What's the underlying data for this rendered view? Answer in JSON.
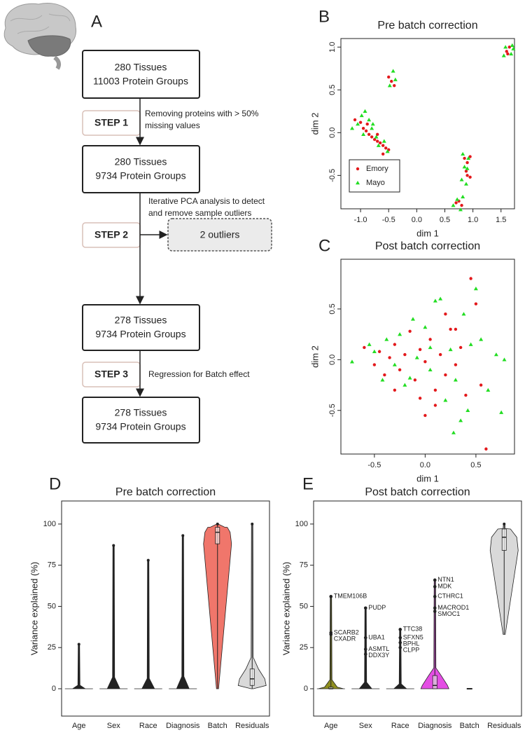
{
  "flowchart": {
    "panel_label": "A",
    "boxes": [
      [
        "280 Tissues",
        "11003  Protein Groups"
      ],
      [
        "280 Tissues",
        "9734 Protein Groups"
      ],
      [
        "278 Tissues",
        "9734  Protein Groups"
      ],
      [
        "278 Tissues",
        "9734  Protein Groups"
      ]
    ],
    "steps": [
      {
        "label": "STEP 1",
        "description": [
          "Removing proteins with > 50%",
          "missing values"
        ]
      },
      {
        "label": "STEP 2",
        "description": [
          "Iterative PCA analysis to detect",
          "and remove sample outliers"
        ]
      },
      {
        "label": "STEP 3",
        "description": [
          "Regression for Batch effect"
        ]
      }
    ],
    "outliers": "2 outliers"
  },
  "chart_data": [
    {
      "type": "scatter",
      "panel_label": "B",
      "title": "Pre batch correction",
      "xlabel": "dim 1",
      "ylabel": "dim 2",
      "xlim": [
        -1.35,
        1.74
      ],
      "ylim": [
        -0.89,
        1.1
      ],
      "xticks": [
        {
          "value": -1,
          "label": "-1.0"
        },
        -0.5,
        {
          "value": 0,
          "label": "0.0"
        },
        0.5,
        {
          "value": 1,
          "label": "1.0"
        },
        1.5
      ],
      "yticks": [
        -0.5,
        {
          "value": 0,
          "label": "0.0"
        },
        0.5,
        {
          "value": 1,
          "label": "1.0"
        }
      ],
      "legend": "lower left",
      "series": [
        {
          "name": "Emory",
          "color": "#e3191c",
          "marker": "circle",
          "x": [
            -1.1,
            -1.0,
            -0.95,
            -0.9,
            -0.85,
            -0.8,
            -0.75,
            -0.7,
            -0.65,
            -0.6,
            -0.55,
            -0.5,
            -0.6,
            -0.7,
            -0.88,
            -0.45,
            -0.4,
            -0.5,
            0.85,
            0.9,
            0.95,
            0.88,
            0.95,
            0.9,
            0.75,
            0.8,
            0.7,
            1.6,
            1.65,
            1.62
          ],
          "y": [
            0.15,
            0.12,
            0.05,
            0.02,
            -0.02,
            -0.05,
            -0.08,
            -0.1,
            -0.12,
            -0.15,
            -0.18,
            -0.2,
            -0.25,
            -0.02,
            0.1,
            0.6,
            0.55,
            0.65,
            -0.3,
            -0.35,
            -0.28,
            -0.45,
            -0.52,
            -0.5,
            -0.8,
            -0.85,
            -0.82,
            0.95,
            1.0,
            0.92
          ]
        },
        {
          "name": "Mayo",
          "color": "#22dd22",
          "marker": "triangle",
          "x": [
            -1.05,
            -0.98,
            -0.92,
            -0.85,
            -0.8,
            -0.72,
            -0.68,
            -0.58,
            -0.52,
            -0.95,
            -1.15,
            -0.78,
            -0.42,
            -0.38,
            -0.48,
            0.82,
            0.92,
            0.85,
            0.9,
            0.88,
            0.8,
            0.72,
            0.78,
            0.82,
            0.65,
            1.58,
            1.7,
            1.55,
            1.68,
            1.72
          ],
          "y": [
            0.1,
            0.2,
            0.25,
            0.15,
            0.05,
            -0.05,
            -0.15,
            -0.1,
            -0.22,
            -0.02,
            0.05,
            0.1,
            0.72,
            0.62,
            0.55,
            -0.25,
            -0.3,
            -0.4,
            -0.42,
            -0.6,
            -0.55,
            -0.78,
            -0.9,
            -0.75,
            -0.85,
            1.0,
            1.02,
            0.9,
            0.92,
            0.98
          ]
        }
      ]
    },
    {
      "type": "scatter",
      "panel_label": "C",
      "title": "Post batch correction",
      "xlabel": "dim 1",
      "ylabel": "dim 2",
      "xlim": [
        -0.83,
        0.88
      ],
      "ylim": [
        -0.93,
        0.99
      ],
      "xticks": [
        -0.5,
        {
          "value": 0,
          "label": "0.0"
        },
        0.5
      ],
      "yticks": [
        -0.5,
        {
          "value": 0,
          "label": "0.0"
        },
        0.5
      ],
      "series": [
        {
          "color": "#e3191c",
          "marker": "circle",
          "x": [
            -0.6,
            -0.5,
            -0.45,
            -0.4,
            -0.35,
            -0.3,
            -0.25,
            -0.2,
            -0.15,
            -0.1,
            -0.05,
            0.0,
            0.05,
            0.1,
            0.15,
            0.2,
            0.25,
            0.3,
            0.35,
            0.4,
            0.45,
            0.5,
            0.55,
            0.6,
            0.0,
            -0.05,
            0.2,
            0.1,
            -0.3,
            0.3
          ],
          "y": [
            0.12,
            -0.05,
            0.08,
            -0.15,
            0.02,
            0.15,
            -0.1,
            0.05,
            0.28,
            -0.2,
            0.1,
            -0.02,
            0.2,
            -0.3,
            0.05,
            -0.15,
            0.3,
            -0.05,
            0.12,
            -0.35,
            0.8,
            0.55,
            -0.25,
            -0.88,
            -0.55,
            -0.38,
            0.45,
            -0.45,
            -0.3,
            0.3
          ]
        },
        {
          "color": "#22dd22",
          "marker": "triangle",
          "x": [
            -0.72,
            -0.55,
            -0.5,
            -0.42,
            -0.38,
            -0.3,
            -0.25,
            -0.2,
            -0.12,
            -0.08,
            0.0,
            0.05,
            0.1,
            0.15,
            0.2,
            0.25,
            0.3,
            0.38,
            0.42,
            0.5,
            0.55,
            0.62,
            0.7,
            0.75,
            0.78,
            0.28,
            -0.15,
            0.05,
            0.35,
            0.45
          ],
          "y": [
            -0.02,
            0.15,
            0.08,
            -0.2,
            0.2,
            -0.05,
            0.25,
            -0.25,
            0.4,
            0.02,
            0.32,
            -0.1,
            0.58,
            0.6,
            -0.4,
            0.1,
            -0.2,
            0.45,
            -0.5,
            0.7,
            0.2,
            -0.3,
            0.05,
            -0.52,
            0.0,
            -0.72,
            -0.18,
            0.12,
            -0.6,
            0.15
          ]
        }
      ]
    },
    {
      "type": "violin",
      "panel_label": "D",
      "title": "Pre batch correction",
      "ylabel": "Variance explained (%)",
      "categories": [
        "Age",
        "Sex",
        "Race",
        "Diagnosis",
        "Batch",
        "Residuals"
      ],
      "ylim": [
        -16.6,
        114
      ],
      "yticks": [
        0,
        25,
        50,
        75,
        100
      ],
      "colors": [
        "#222222",
        "#222222",
        "#222222",
        "#222222",
        "#f0766b",
        "#d9d9d9"
      ],
      "stats": {
        "min": [
          0,
          0,
          0,
          0,
          0,
          0
        ],
        "q1": [
          0,
          0,
          0,
          0,
          88,
          2
        ],
        "median": [
          0,
          0,
          0,
          0,
          95,
          6
        ],
        "q3": [
          0,
          0,
          0,
          0,
          98,
          12
        ],
        "max": [
          27,
          87,
          78,
          93,
          100,
          100
        ]
      }
    },
    {
      "type": "violin",
      "panel_label": "E",
      "title": "Post batch correction",
      "ylabel": "Variance explained (%)",
      "categories": [
        "Age",
        "Sex",
        "Race",
        "Diagnosis",
        "Batch",
        "Residuals"
      ],
      "ylim": [
        -16.6,
        114
      ],
      "yticks": [
        0,
        25,
        50,
        75,
        100
      ],
      "colors": [
        "#8f8f1f",
        "#222222",
        "#222222",
        "#e44ee4",
        "#222222",
        "#d9d9d9"
      ],
      "stats": {
        "min": [
          0,
          0,
          0,
          0,
          0,
          33
        ],
        "q1": [
          0,
          0,
          0,
          0,
          0,
          84
        ],
        "median": [
          0,
          0,
          0,
          2,
          0,
          92
        ],
        "q3": [
          1,
          0,
          0,
          8,
          0,
          97
        ],
        "max": [
          56,
          49,
          36,
          66,
          0,
          100
        ]
      },
      "annotations": [
        {
          "category": "Age",
          "label": "TMEM106B",
          "value": 56
        },
        {
          "category": "Age",
          "label": "SCARB2",
          "value": 34
        },
        {
          "category": "Age",
          "label": "CXADR",
          "value": 33
        },
        {
          "category": "Sex",
          "label": "PUDP",
          "value": 49
        },
        {
          "category": "Sex",
          "label": "UBA1",
          "value": 31
        },
        {
          "category": "Sex",
          "label": "ASMTL",
          "value": 24
        },
        {
          "category": "Sex",
          "label": "DDX3Y",
          "value": 21
        },
        {
          "category": "Race",
          "label": "TTC38",
          "value": 36
        },
        {
          "category": "Race",
          "label": "SFXN5",
          "value": 31
        },
        {
          "category": "Race",
          "label": "BPHL",
          "value": 28
        },
        {
          "category": "Race",
          "label": "CLPP",
          "value": 25
        },
        {
          "category": "Diagnosis",
          "label": "NTN1",
          "value": 66
        },
        {
          "category": "Diagnosis",
          "label": "MDK",
          "value": 62
        },
        {
          "category": "Diagnosis",
          "label": "CTHRC1",
          "value": 56
        },
        {
          "category": "Diagnosis",
          "label": "MACROD1",
          "value": 49
        },
        {
          "category": "Diagnosis",
          "label": "SMOC1",
          "value": 47
        }
      ]
    }
  ]
}
